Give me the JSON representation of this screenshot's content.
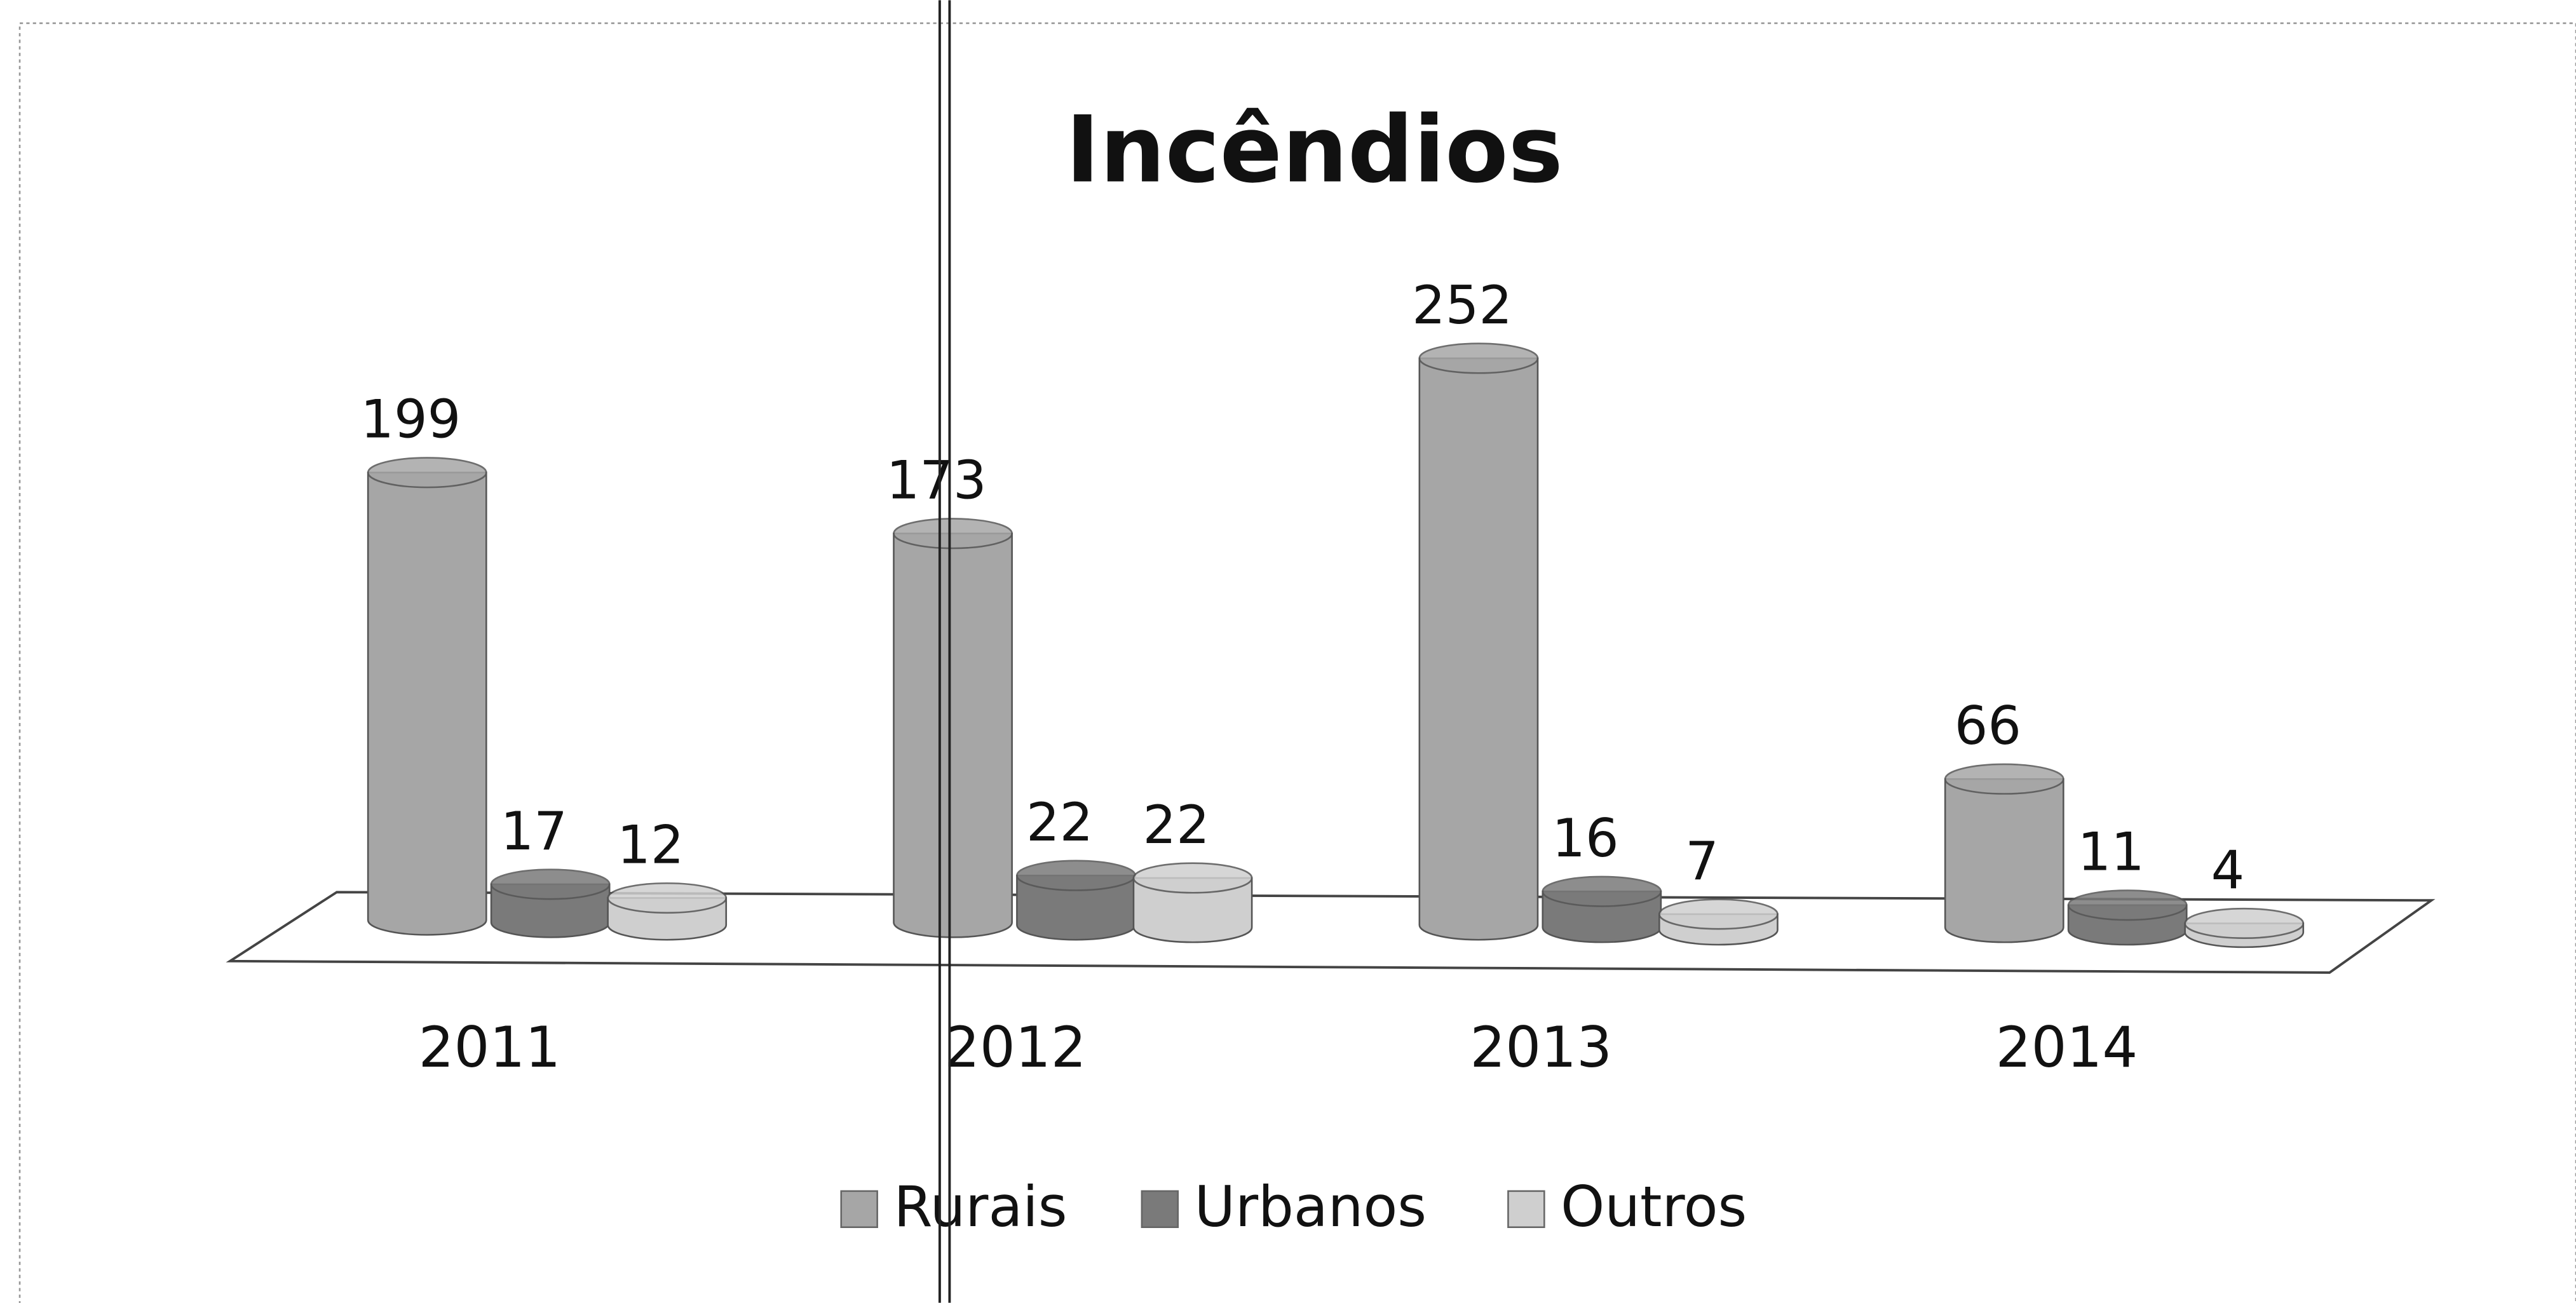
{
  "chart_data": {
    "type": "bar3d-cylinder",
    "title": "Incêndios",
    "categories": [
      "2011",
      "2012",
      "2013",
      "2014"
    ],
    "series": [
      {
        "name": "Rurais",
        "color": "#a6a6a6",
        "values": [
          199,
          173,
          252,
          66
        ]
      },
      {
        "name": "Urbanos",
        "color": "#7a7a7a",
        "values": [
          17,
          22,
          16,
          11
        ]
      },
      {
        "name": "Outros",
        "color": "#cfcfcf",
        "values": [
          12,
          22,
          7,
          4
        ]
      }
    ],
    "legend": "bottom"
  }
}
